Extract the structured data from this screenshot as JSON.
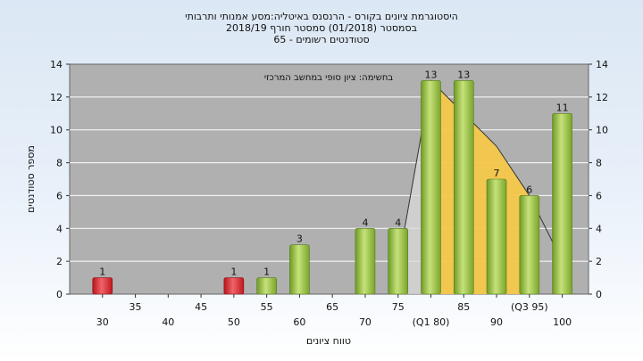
{
  "chart_data": {
    "type": "bar",
    "title": "היסטוגרמת ציונים בקורס - הרנסנס באיטליה:מסע אמנותי ותרבותי",
    "subtitle_lines": [
      "בסמסטר  (01/2018)  סמסטר חורף  2018/19",
      "סטודנטים רשומים - 65"
    ],
    "legend_text": "בחשימה: ציון סופי במחשב המרכזי",
    "xlabel": "טווח ציונים",
    "ylabel": "מספר סטודנטים",
    "ylim": [
      0,
      14
    ],
    "yticks": [
      0,
      2,
      4,
      6,
      8,
      10,
      12,
      14
    ],
    "x_tick_labels": [
      {
        "x": 30,
        "label": "30"
      },
      {
        "x": 35,
        "label": "35"
      },
      {
        "x": 40,
        "label": "40"
      },
      {
        "x": 45,
        "label": "45"
      },
      {
        "x": 50,
        "label": "50"
      },
      {
        "x": 55,
        "label": "55"
      },
      {
        "x": 60,
        "label": "60"
      },
      {
        "x": 65,
        "label": "65"
      },
      {
        "x": 70,
        "label": "70"
      },
      {
        "x": 75,
        "label": "75"
      },
      {
        "x": 80,
        "label": "(Q1 80)"
      },
      {
        "x": 85,
        "label": "85"
      },
      {
        "x": 90,
        "label": "90"
      },
      {
        "x": 95,
        "label": "(Q3 95)"
      },
      {
        "x": 100,
        "label": "100"
      }
    ],
    "bars": [
      {
        "x": 30,
        "value": 1,
        "color": "red"
      },
      {
        "x": 50,
        "value": 1,
        "color": "red"
      },
      {
        "x": 55,
        "value": 1,
        "color": "green"
      },
      {
        "x": 60,
        "value": 3,
        "color": "green"
      },
      {
        "x": 70,
        "value": 4,
        "color": "green"
      },
      {
        "x": 75,
        "value": 4,
        "color": "green"
      },
      {
        "x": 80,
        "value": 13,
        "color": "green"
      },
      {
        "x": 85,
        "value": 13,
        "color": "green"
      },
      {
        "x": 90,
        "value": 7,
        "color": "green"
      },
      {
        "x": 95,
        "value": 6,
        "color": "green"
      },
      {
        "x": 100,
        "value": 11,
        "color": "green"
      }
    ],
    "quartile_band": {
      "x_start": 80,
      "x_end": 95
    },
    "distribution_curve": [
      {
        "x": 76,
        "y": 4
      },
      {
        "x": 80,
        "y": 13
      },
      {
        "x": 85,
        "y": 11
      },
      {
        "x": 90,
        "y": 9
      },
      {
        "x": 95,
        "y": 6
      },
      {
        "x": 100,
        "y": 2
      }
    ],
    "grid": true,
    "colors": {
      "plot_bg": "#b0b0b0",
      "red_bar": "#d8262b",
      "green_bar": "#8ab53a",
      "band": "#f6c84a",
      "grid": "#ffffff"
    }
  }
}
